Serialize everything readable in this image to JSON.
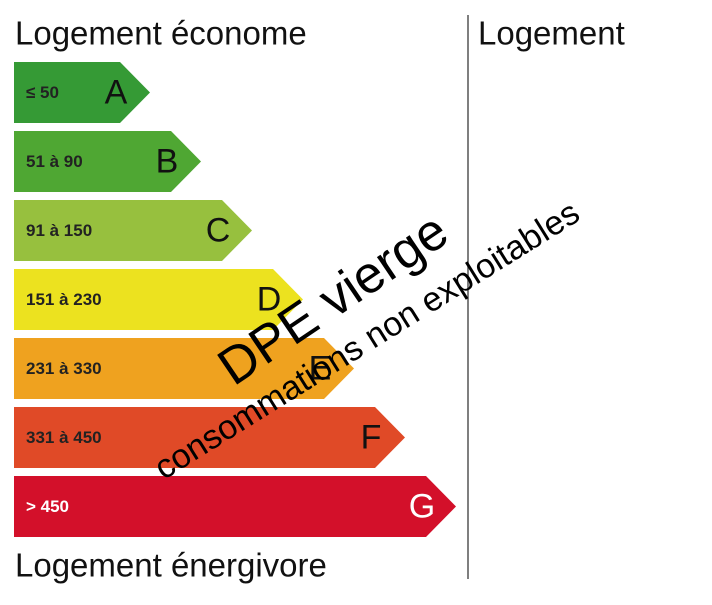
{
  "header": {
    "title": "Logement économe",
    "right_title": "Logement"
  },
  "classes": [
    {
      "range": "≤ 50",
      "letter": "A",
      "color": "#359a35"
    },
    {
      "range": "51 à 90",
      "letter": "B",
      "color": "#4fa733"
    },
    {
      "range": "91 à 150",
      "letter": "C",
      "color": "#97c03e"
    },
    {
      "range": "151 à 230",
      "letter": "D",
      "color": "#ece21f"
    },
    {
      "range": "231 à 330",
      "letter": "E",
      "color": "#efa21f"
    },
    {
      "range": "331 à 450",
      "letter": "F",
      "color": "#e04a27"
    },
    {
      "range": "> 450",
      "letter": "G",
      "color": "#d3102a"
    }
  ],
  "footer": {
    "title": "Logement énergivore"
  },
  "stamp": {
    "main": "DPE vierge",
    "sub": "consommations non exploitables"
  }
}
